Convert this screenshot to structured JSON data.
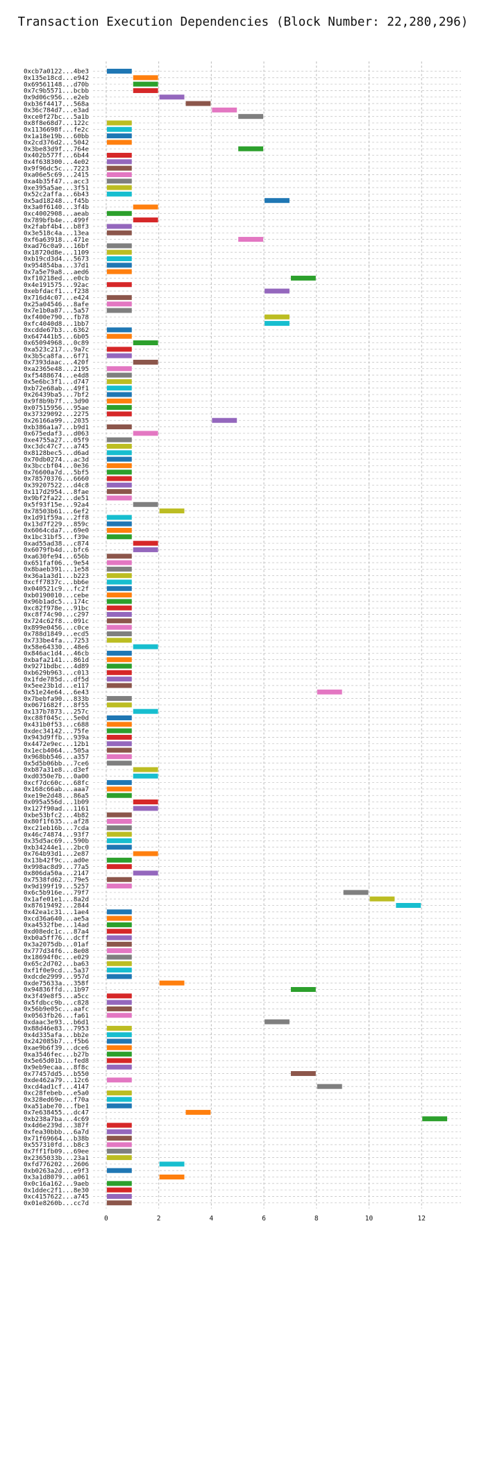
{
  "chart_data": {
    "type": "bar",
    "orientation": "horizontal-gantt",
    "title": "Transaction Execution Dependencies (Block Number: 22,280,296)",
    "xlabel": "",
    "ylabel": "",
    "xlim": [
      -0.5,
      13.5
    ],
    "xticks": [
      0,
      2,
      4,
      6,
      8,
      10,
      12
    ],
    "grid": true,
    "palette": [
      "#1f77b4",
      "#ff7f0e",
      "#2ca02c",
      "#d62728",
      "#9467bd",
      "#8c564b",
      "#e377c2",
      "#7f7f7f",
      "#bcbd22",
      "#17becf"
    ],
    "transactions": [
      {
        "label": "0xcb7a0122...4be3",
        "start": 0,
        "end": 1
      },
      {
        "label": "0x135e18cd...e942",
        "start": 1,
        "end": 2
      },
      {
        "label": "0x69561148...d70b",
        "start": 1,
        "end": 2
      },
      {
        "label": "0x7c9b5571...bcbb",
        "start": 1,
        "end": 2
      },
      {
        "label": "0x9d06c956...e2eb",
        "start": 2,
        "end": 3
      },
      {
        "label": "0xb36f4417...568a",
        "start": 3,
        "end": 4
      },
      {
        "label": "0x36c784d7...e3ad",
        "start": 4,
        "end": 5
      },
      {
        "label": "0xce0f27bc...5a1b",
        "start": 5,
        "end": 6
      },
      {
        "label": "0x8f8e68d7...122c",
        "start": 0,
        "end": 1
      },
      {
        "label": "0x1136698f...fe2c",
        "start": 0,
        "end": 1
      },
      {
        "label": "0x1a18e19b...60bb",
        "start": 0,
        "end": 1
      },
      {
        "label": "0x2cd376d2...5042",
        "start": 0,
        "end": 1
      },
      {
        "label": "0x3be83d9f...764e",
        "start": 5,
        "end": 6
      },
      {
        "label": "0x402b577f...6b44",
        "start": 0,
        "end": 1
      },
      {
        "label": "0x4f638300...4e02",
        "start": 0,
        "end": 1
      },
      {
        "label": "0x9f96dc5c...7223",
        "start": 0,
        "end": 1
      },
      {
        "label": "0xa06e5c69...2415",
        "start": 0,
        "end": 1
      },
      {
        "label": "0xa4b35f47...acc3",
        "start": 0,
        "end": 1
      },
      {
        "label": "0xe395a5ae...3f51",
        "start": 0,
        "end": 1
      },
      {
        "label": "0x52c2affa...6b43",
        "start": 0,
        "end": 1
      },
      {
        "label": "0x5ad18248...f45b",
        "start": 6,
        "end": 7
      },
      {
        "label": "0x3a0f6140...3f4b",
        "start": 1,
        "end": 2
      },
      {
        "label": "0xc4002908...aeab",
        "start": 0,
        "end": 1
      },
      {
        "label": "0x789bfb4e...499f",
        "start": 1,
        "end": 2
      },
      {
        "label": "0x2fabf4b4...b8f3",
        "start": 0,
        "end": 1
      },
      {
        "label": "0x3e518c4a...13ea",
        "start": 0,
        "end": 1
      },
      {
        "label": "0xf6a63918...471e",
        "start": 5,
        "end": 6
      },
      {
        "label": "0xad76c0a9...16bf",
        "start": 0,
        "end": 1
      },
      {
        "label": "0x18720d8e...1109",
        "start": 0,
        "end": 1
      },
      {
        "label": "0xb19cd3d4...5673",
        "start": 0,
        "end": 1
      },
      {
        "label": "0x954854ba...37d1",
        "start": 0,
        "end": 1
      },
      {
        "label": "0x7a5e79a8...aed6",
        "start": 0,
        "end": 1
      },
      {
        "label": "0xf10218ed...e0cb",
        "start": 7,
        "end": 8
      },
      {
        "label": "0x4e191575...92ac",
        "start": 0,
        "end": 1
      },
      {
        "label": "0xebfdacf1...f238",
        "start": 6,
        "end": 7
      },
      {
        "label": "0x716d4c07...e424",
        "start": 0,
        "end": 1
      },
      {
        "label": "0x25a04546...8afe",
        "start": 0,
        "end": 1
      },
      {
        "label": "0x7e1b0a87...5a57",
        "start": 0,
        "end": 1
      },
      {
        "label": "0xf400e790...fb78",
        "start": 6,
        "end": 7
      },
      {
        "label": "0xfc4040d8...1bb7",
        "start": 6,
        "end": 7
      },
      {
        "label": "0xcdde67b3...6362",
        "start": 0,
        "end": 1
      },
      {
        "label": "0x647441b5...6b05",
        "start": 0,
        "end": 1
      },
      {
        "label": "0x65094968...0c89",
        "start": 1,
        "end": 2
      },
      {
        "label": "0xa523c217...9a7c",
        "start": 0,
        "end": 1
      },
      {
        "label": "0x3b5ca8fa...6f71",
        "start": 0,
        "end": 1
      },
      {
        "label": "0x7393daac...420f",
        "start": 1,
        "end": 2
      },
      {
        "label": "0xa2365e48...2195",
        "start": 0,
        "end": 1
      },
      {
        "label": "0xf5488674...e4d8",
        "start": 0,
        "end": 1
      },
      {
        "label": "0x5e6bc3f1...d747",
        "start": 0,
        "end": 1
      },
      {
        "label": "0xb72e68ab...49f1",
        "start": 0,
        "end": 1
      },
      {
        "label": "0x26439ba5...7bf2",
        "start": 0,
        "end": 1
      },
      {
        "label": "0x9f8b9b7f...3d90",
        "start": 0,
        "end": 1
      },
      {
        "label": "0x07515956...95ae",
        "start": 0,
        "end": 1
      },
      {
        "label": "0x37329092...2275",
        "start": 0,
        "end": 1
      },
      {
        "label": "0x26166a99...2035",
        "start": 4,
        "end": 5
      },
      {
        "label": "0xb386a1a7...b9d1",
        "start": 0,
        "end": 1
      },
      {
        "label": "0x675edaf3...d063",
        "start": 1,
        "end": 2
      },
      {
        "label": "0xe4755a27...05f9",
        "start": 0,
        "end": 1
      },
      {
        "label": "0xc3dc47c7...a745",
        "start": 0,
        "end": 1
      },
      {
        "label": "0x8128bec5...d6ad",
        "start": 0,
        "end": 1
      },
      {
        "label": "0x70db0274...ac3d",
        "start": 0,
        "end": 1
      },
      {
        "label": "0x3bccbf04...0e36",
        "start": 0,
        "end": 1
      },
      {
        "label": "0x76600a7d...5bf5",
        "start": 0,
        "end": 1
      },
      {
        "label": "0x78570376...6660",
        "start": 0,
        "end": 1
      },
      {
        "label": "0x39207522...d4c8",
        "start": 0,
        "end": 1
      },
      {
        "label": "0x117d2954...8fae",
        "start": 0,
        "end": 1
      },
      {
        "label": "0x9bf2fa22...de51",
        "start": 0,
        "end": 1
      },
      {
        "label": "0x5f93f15e...92a4",
        "start": 1,
        "end": 2
      },
      {
        "label": "0x78503b61...6ef2",
        "start": 2,
        "end": 3
      },
      {
        "label": "0x1d91f59a...2ff8",
        "start": 0,
        "end": 1
      },
      {
        "label": "0x13d7f229...859c",
        "start": 0,
        "end": 1
      },
      {
        "label": "0x6064cda7...69e0",
        "start": 0,
        "end": 1
      },
      {
        "label": "0x1bc31bf5...f39e",
        "start": 0,
        "end": 1
      },
      {
        "label": "0xad55ad38...c874",
        "start": 1,
        "end": 2
      },
      {
        "label": "0x6079fb4d...bfc6",
        "start": 1,
        "end": 2
      },
      {
        "label": "0xa630fe94...656b",
        "start": 0,
        "end": 1
      },
      {
        "label": "0x651faf06...9e54",
        "start": 0,
        "end": 1
      },
      {
        "label": "0x8baeb391...1e58",
        "start": 0,
        "end": 1
      },
      {
        "label": "0x36a1a3d1...b223",
        "start": 0,
        "end": 1
      },
      {
        "label": "0xcff7837c...bb6e",
        "start": 0,
        "end": 1
      },
      {
        "label": "0x040521c9...fc2f",
        "start": 0,
        "end": 1
      },
      {
        "label": "0xb0190010...cebe",
        "start": 0,
        "end": 1
      },
      {
        "label": "0x96b1adc5...174c",
        "start": 0,
        "end": 1
      },
      {
        "label": "0xc82f978e...91bc",
        "start": 0,
        "end": 1
      },
      {
        "label": "0xc8f74c90...c297",
        "start": 0,
        "end": 1
      },
      {
        "label": "0x724c62f8...091c",
        "start": 0,
        "end": 1
      },
      {
        "label": "0x899e0456...c0ce",
        "start": 0,
        "end": 1
      },
      {
        "label": "0x788d1849...ecd5",
        "start": 0,
        "end": 1
      },
      {
        "label": "0x733be4fa...7253",
        "start": 0,
        "end": 1
      },
      {
        "label": "0x58e64330...48e6",
        "start": 1,
        "end": 2
      },
      {
        "label": "0x846ac1d4...46cb",
        "start": 0,
        "end": 1
      },
      {
        "label": "0xbafa2141...861d",
        "start": 0,
        "end": 1
      },
      {
        "label": "0x9271bdbc...4d89",
        "start": 0,
        "end": 1
      },
      {
        "label": "0xb629b963...c013",
        "start": 0,
        "end": 1
      },
      {
        "label": "0x1fde785d...df5d",
        "start": 0,
        "end": 1
      },
      {
        "label": "0x5ee23b1d...e117",
        "start": 0,
        "end": 1
      },
      {
        "label": "0x51e24e64...6e43",
        "start": 8,
        "end": 9
      },
      {
        "label": "0x7bebfa90...833b",
        "start": 0,
        "end": 1
      },
      {
        "label": "0x0671682f...8f55",
        "start": 0,
        "end": 1
      },
      {
        "label": "0x137b7873...257c",
        "start": 1,
        "end": 2
      },
      {
        "label": "0xc88f045c...5e0d",
        "start": 0,
        "end": 1
      },
      {
        "label": "0x431b0f53...c688",
        "start": 0,
        "end": 1
      },
      {
        "label": "0xdec34142...75fe",
        "start": 0,
        "end": 1
      },
      {
        "label": "0x943d9ffb...939a",
        "start": 0,
        "end": 1
      },
      {
        "label": "0x4472e9ec...12b1",
        "start": 0,
        "end": 1
      },
      {
        "label": "0x1ecb4064...505a",
        "start": 0,
        "end": 1
      },
      {
        "label": "0x968bb546...a357",
        "start": 0,
        "end": 1
      },
      {
        "label": "0x5d5b06bb...7ce6",
        "start": 0,
        "end": 1
      },
      {
        "label": "0xb87a31e8...d3ef",
        "start": 1,
        "end": 2
      },
      {
        "label": "0xd0350e7b...0a00",
        "start": 1,
        "end": 2
      },
      {
        "label": "0xcf7dc60c...68fc",
        "start": 0,
        "end": 1
      },
      {
        "label": "0x168c66ab...aaa7",
        "start": 0,
        "end": 1
      },
      {
        "label": "0xe19e2d48...86a5",
        "start": 0,
        "end": 1
      },
      {
        "label": "0x095a556d...1b09",
        "start": 1,
        "end": 2
      },
      {
        "label": "0x127f90ad...1161",
        "start": 1,
        "end": 2
      },
      {
        "label": "0xbe53bfc2...4b82",
        "start": 0,
        "end": 1
      },
      {
        "label": "0x80f1f635...af28",
        "start": 0,
        "end": 1
      },
      {
        "label": "0xc21eb16b...7cda",
        "start": 0,
        "end": 1
      },
      {
        "label": "0x46c74874...93f7",
        "start": 0,
        "end": 1
      },
      {
        "label": "0x35d5ac69...590b",
        "start": 0,
        "end": 1
      },
      {
        "label": "0xb34244e1...2bc0",
        "start": 0,
        "end": 1
      },
      {
        "label": "0x764b93d1...2e87",
        "start": 1,
        "end": 2
      },
      {
        "label": "0x13b42f9c...ad0e",
        "start": 0,
        "end": 1
      },
      {
        "label": "0x998ac8d9...77a5",
        "start": 0,
        "end": 1
      },
      {
        "label": "0x806da50a...2147",
        "start": 1,
        "end": 2
      },
      {
        "label": "0x7538fd62...79e5",
        "start": 0,
        "end": 1
      },
      {
        "label": "0x9d199f19...5257",
        "start": 0,
        "end": 1
      },
      {
        "label": "0x6c5b916e...79f7",
        "start": 9,
        "end": 10
      },
      {
        "label": "0x1afe01e1...8a2d",
        "start": 10,
        "end": 11
      },
      {
        "label": "0x87619492...2844",
        "start": 11,
        "end": 12
      },
      {
        "label": "0x42ea1c31...1ae4",
        "start": 0,
        "end": 1
      },
      {
        "label": "0xcd36a640...ae5a",
        "start": 0,
        "end": 1
      },
      {
        "label": "0xa4532fbe...14ad",
        "start": 0,
        "end": 1
      },
      {
        "label": "0xd08edc1c...87a4",
        "start": 0,
        "end": 1
      },
      {
        "label": "0xb0a5ff76...dcff",
        "start": 0,
        "end": 1
      },
      {
        "label": "0x3a2075db...01af",
        "start": 0,
        "end": 1
      },
      {
        "label": "0x777d34f6...8e08",
        "start": 0,
        "end": 1
      },
      {
        "label": "0x18694f0c...e029",
        "start": 0,
        "end": 1
      },
      {
        "label": "0x65c2d702...ba63",
        "start": 0,
        "end": 1
      },
      {
        "label": "0xf1f0e9cd...5a37",
        "start": 0,
        "end": 1
      },
      {
        "label": "0xdcde2999...957d",
        "start": 0,
        "end": 1
      },
      {
        "label": "0xde75633a...358f",
        "start": 2,
        "end": 3
      },
      {
        "label": "0x94836ffd...1b97",
        "start": 7,
        "end": 8
      },
      {
        "label": "0x3f49e8f5...a5cc",
        "start": 0,
        "end": 1
      },
      {
        "label": "0x5fdbcc9b...c828",
        "start": 0,
        "end": 1
      },
      {
        "label": "0x56b9e05c...aafc",
        "start": 0,
        "end": 1
      },
      {
        "label": "0x0563fb26...fa61",
        "start": 0,
        "end": 1
      },
      {
        "label": "0xdaac3e93...b6d1",
        "start": 6,
        "end": 7
      },
      {
        "label": "0x88d46e83...7953",
        "start": 0,
        "end": 1
      },
      {
        "label": "0x4d335afa...bb2e",
        "start": 0,
        "end": 1
      },
      {
        "label": "0x242085b7...f5b6",
        "start": 0,
        "end": 1
      },
      {
        "label": "0xae9b6f39...dce6",
        "start": 0,
        "end": 1
      },
      {
        "label": "0xa3546fec...b27b",
        "start": 0,
        "end": 1
      },
      {
        "label": "0x5e65d01b...fed8",
        "start": 0,
        "end": 1
      },
      {
        "label": "0x9eb9ecaa...8f8c",
        "start": 0,
        "end": 1
      },
      {
        "label": "0x77457dd5...b550",
        "start": 7,
        "end": 8
      },
      {
        "label": "0xde462a79...12c6",
        "start": 0,
        "end": 1
      },
      {
        "label": "0xcd4ad1cf...4147",
        "start": 8,
        "end": 9
      },
      {
        "label": "0xc28febeb...e5a0",
        "start": 0,
        "end": 1
      },
      {
        "label": "0x328ed69e...f70a",
        "start": 0,
        "end": 1
      },
      {
        "label": "0xa51abe70...fbe1",
        "start": 0,
        "end": 1
      },
      {
        "label": "0x7e638455...dc47",
        "start": 3,
        "end": 4
      },
      {
        "label": "0xb238a7ba...4c69",
        "start": 12,
        "end": 13
      },
      {
        "label": "0x4d6e239d...387f",
        "start": 0,
        "end": 1
      },
      {
        "label": "0xfea30bbb...6a7d",
        "start": 0,
        "end": 1
      },
      {
        "label": "0x71f69664...b38b",
        "start": 0,
        "end": 1
      },
      {
        "label": "0x557310fd...b8c3",
        "start": 0,
        "end": 1
      },
      {
        "label": "0x7ff1fb09...69ee",
        "start": 0,
        "end": 1
      },
      {
        "label": "0x2365033b...23a1",
        "start": 0,
        "end": 1
      },
      {
        "label": "0xfd776202...2606",
        "start": 2,
        "end": 3
      },
      {
        "label": "0xb0263a2d...e9f3",
        "start": 0,
        "end": 1
      },
      {
        "label": "0x3a1d8079...a061",
        "start": 2,
        "end": 3
      },
      {
        "label": "0x0c16a162...9aeb",
        "start": 0,
        "end": 1
      },
      {
        "label": "0x1ddec2f1...8e30",
        "start": 0,
        "end": 1
      },
      {
        "label": "0xc4157622...a745",
        "start": 0,
        "end": 1
      },
      {
        "label": "0x01e8260b...cc7d",
        "start": 0,
        "end": 1
      }
    ]
  }
}
